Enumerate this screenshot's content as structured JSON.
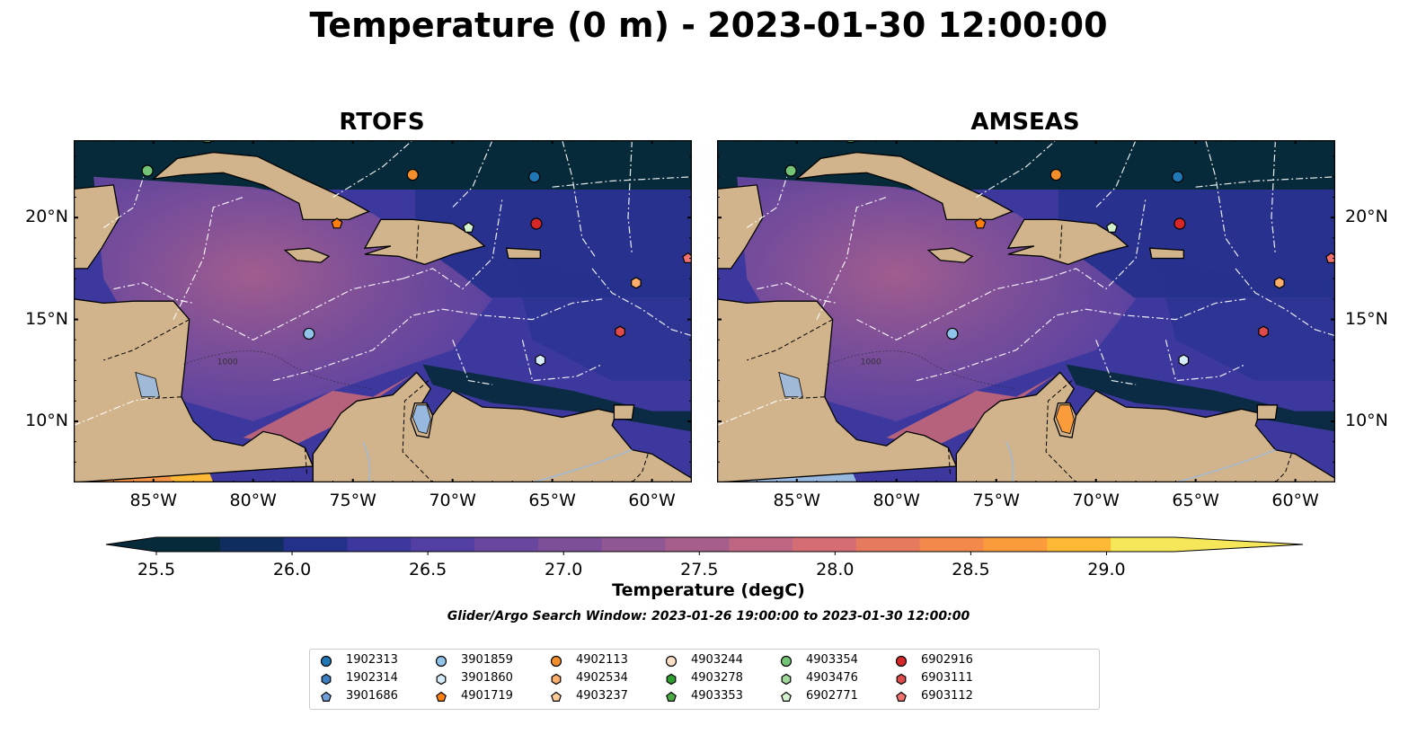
{
  "title": "Temperature (0 m) - 2023-01-30 12:00:00",
  "panels": [
    {
      "name": "RTOFS"
    },
    {
      "name": "AMSEAS"
    }
  ],
  "map": {
    "lon_range": [
      -89.0,
      -58.0
    ],
    "lat_range": [
      7.0,
      23.8
    ],
    "lon_ticks": [
      "85°W",
      "80°W",
      "75°W",
      "70°W",
      "65°W",
      "60°W"
    ],
    "lat_ticks": [
      "20°N",
      "15°N",
      "10°N"
    ],
    "land_color": "#d2b48c",
    "bathymetry_label": "1000"
  },
  "colorbar": {
    "label": "Temperature (degC)",
    "min": 25.5,
    "max": 29.25,
    "ticks": [
      "25.5",
      "26.0",
      "26.5",
      "27.0",
      "27.5",
      "28.0",
      "28.5",
      "29.0"
    ],
    "colors": [
      "#062a3a",
      "#0f2d5e",
      "#23318a",
      "#3d389e",
      "#533fa3",
      "#6a479e",
      "#7d4f99",
      "#8f5794",
      "#a65f8d",
      "#be6682",
      "#d56d74",
      "#e67a5f",
      "#f3894b",
      "#fa9c3c",
      "#fdb836",
      "#f5e65a"
    ]
  },
  "search_window": "Glider/Argo Search Window: 2023-01-26 19:00:00 to 2023-01-30 12:00:00",
  "legend": [
    {
      "id": "1902313",
      "marker": "circle",
      "color": "#1f77b4"
    },
    {
      "id": "1902314",
      "marker": "hexagon",
      "color": "#3a7fc1"
    },
    {
      "id": "3901686",
      "marker": "pentagon",
      "color": "#6f9fd6"
    },
    {
      "id": "3901859",
      "marker": "circle",
      "color": "#90c4ea"
    },
    {
      "id": "3901860",
      "marker": "hexagon",
      "color": "#d6ecfa"
    },
    {
      "id": "4901719",
      "marker": "pentagon",
      "color": "#ff7f0e"
    },
    {
      "id": "4902113",
      "marker": "circle",
      "color": "#f28e2b"
    },
    {
      "id": "4902534",
      "marker": "hexagon",
      "color": "#fdae6b"
    },
    {
      "id": "4903237",
      "marker": "pentagon",
      "color": "#fdcb95"
    },
    {
      "id": "4903244",
      "marker": "circle",
      "color": "#fde0c5"
    },
    {
      "id": "4903278",
      "marker": "hexagon",
      "color": "#2ca02c"
    },
    {
      "id": "4903353",
      "marker": "pentagon",
      "color": "#4aaa44"
    },
    {
      "id": "4903354",
      "marker": "circle",
      "color": "#74c476"
    },
    {
      "id": "4903476",
      "marker": "hexagon",
      "color": "#a1d99b"
    },
    {
      "id": "6902771",
      "marker": "pentagon",
      "color": "#d5f2cf"
    },
    {
      "id": "6902916",
      "marker": "circle",
      "color": "#d62728"
    },
    {
      "id": "6903111",
      "marker": "hexagon",
      "color": "#e04a4a"
    },
    {
      "id": "6903112",
      "marker": "pentagon",
      "color": "#f07070"
    }
  ],
  "floats": [
    {
      "id": "4903354",
      "lon": -85.3,
      "lat": 22.3
    },
    {
      "id": "4903353",
      "lon": -82.3,
      "lat": 23.9
    },
    {
      "id": "4902113",
      "lon": -72.0,
      "lat": 22.1
    },
    {
      "id": "1902313",
      "lon": -65.9,
      "lat": 22.0
    },
    {
      "id": "4901719",
      "lon": -75.8,
      "lat": 19.7
    },
    {
      "id": "6902771",
      "lon": -69.2,
      "lat": 19.5
    },
    {
      "id": "6902916",
      "lon": -65.8,
      "lat": 19.7
    },
    {
      "id": "6903112",
      "lon": -58.2,
      "lat": 18.0
    },
    {
      "id": "4902534",
      "lon": -60.8,
      "lat": 16.8
    },
    {
      "id": "3901859",
      "lon": -77.2,
      "lat": 14.3
    },
    {
      "id": "6903111",
      "lon": -61.6,
      "lat": 14.4
    },
    {
      "id": "3901860",
      "lon": -65.6,
      "lat": 13.0
    }
  ]
}
